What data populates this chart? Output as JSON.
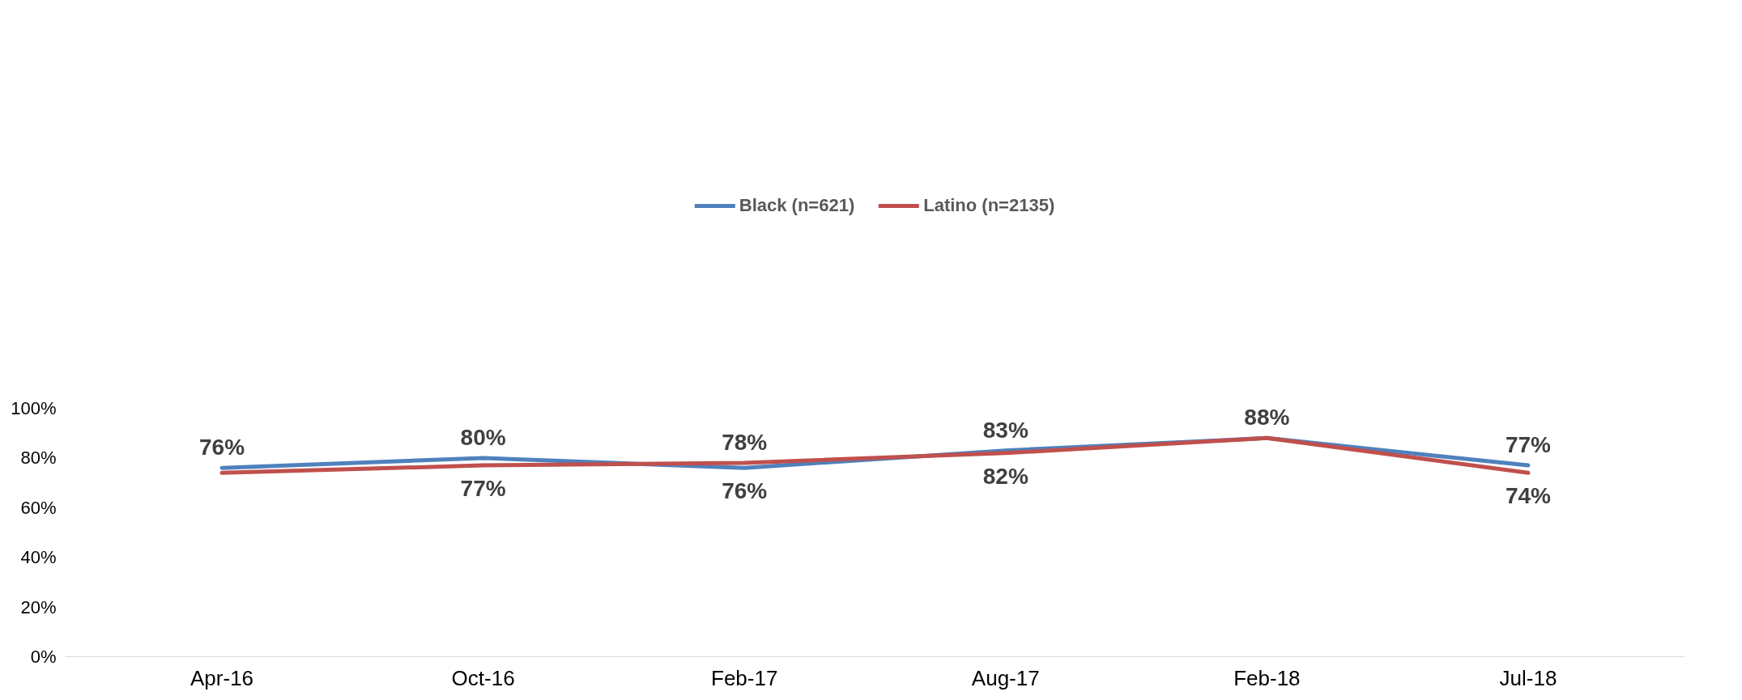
{
  "chart_data": {
    "type": "line",
    "categories": [
      "Apr-16",
      "Oct-16",
      "Feb-17",
      "Aug-17",
      "Feb-18",
      "Jul-18"
    ],
    "series": [
      {
        "name": "Black (n=621)",
        "color": "#4f81bd",
        "values": [
          76,
          80,
          76,
          83,
          88,
          77
        ],
        "value_labels": [
          "76%",
          "80%",
          "76%",
          "83%",
          "88%",
          "77%"
        ]
      },
      {
        "name": "Latino (n=2135)",
        "color": "#c0504d",
        "values": [
          74,
          77,
          78,
          82,
          88,
          74
        ],
        "value_labels": [
          null,
          "77%",
          "78%",
          "82%",
          null,
          "74%"
        ]
      }
    ],
    "ylim": [
      0,
      100
    ],
    "yticks": [
      {
        "value": 0,
        "label": "0%"
      },
      {
        "value": 20,
        "label": "20%"
      },
      {
        "value": 40,
        "label": "40%"
      },
      {
        "value": 60,
        "label": "60%"
      },
      {
        "value": 80,
        "label": "80%"
      },
      {
        "value": 100,
        "label": "100%"
      }
    ],
    "grid": false,
    "legend": "top",
    "marker": "none",
    "line_style": "solid"
  }
}
